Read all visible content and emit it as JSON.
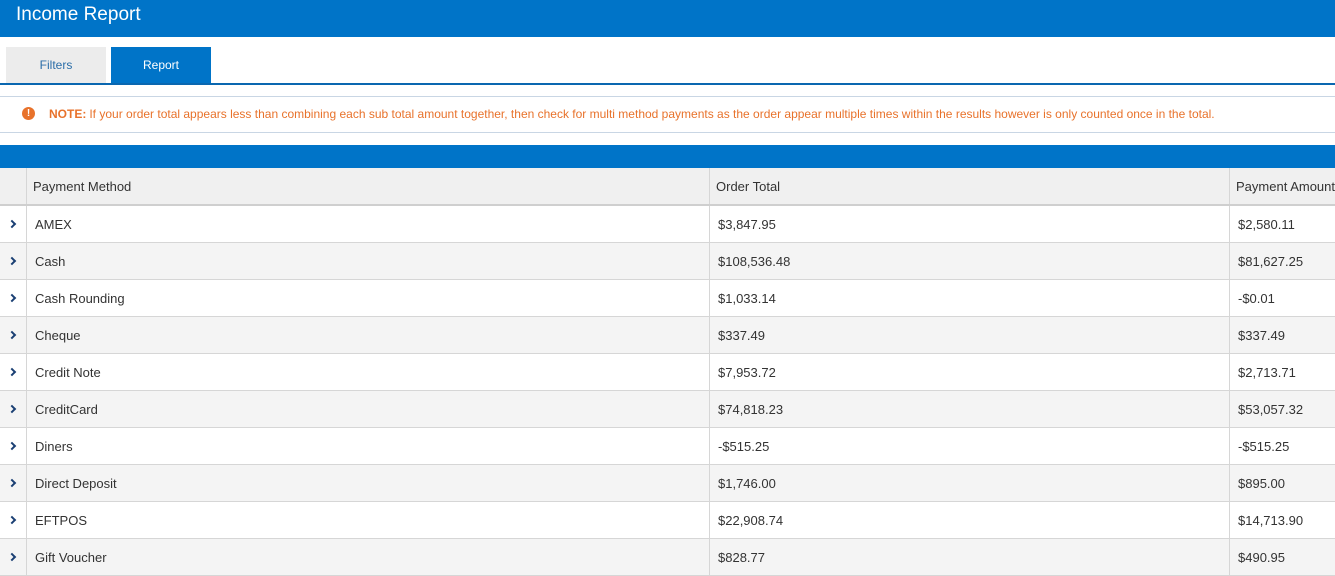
{
  "window": {
    "title": "Income Report"
  },
  "tabs": [
    {
      "label": "Filters",
      "active": false
    },
    {
      "label": "Report",
      "active": true
    }
  ],
  "notice": {
    "icon": "exclamation-circle-icon",
    "label": "NOTE:",
    "text": "If your order total appears less than combining each sub total amount together, then check for multi method payments as the order appear multiple times within the results however is only counted once in the total."
  },
  "grid": {
    "columns": [
      "Payment Method",
      "Order Total",
      "Payment Amount"
    ],
    "rows": [
      {
        "method": "AMEX",
        "order_total": "$3,847.95",
        "payment_amount": "$2,580.11"
      },
      {
        "method": "Cash",
        "order_total": "$108,536.48",
        "payment_amount": "$81,627.25"
      },
      {
        "method": "Cash Rounding",
        "order_total": "$1,033.14",
        "payment_amount": "-$0.01"
      },
      {
        "method": "Cheque",
        "order_total": "$337.49",
        "payment_amount": "$337.49"
      },
      {
        "method": "Credit Note",
        "order_total": "$7,953.72",
        "payment_amount": "$2,713.71"
      },
      {
        "method": "CreditCard",
        "order_total": "$74,818.23",
        "payment_amount": "$53,057.32"
      },
      {
        "method": "Diners",
        "order_total": "-$515.25",
        "payment_amount": "-$515.25"
      },
      {
        "method": "Direct Deposit",
        "order_total": "$1,746.00",
        "payment_amount": "$895.00"
      },
      {
        "method": "EFTPOS",
        "order_total": "$22,908.74",
        "payment_amount": "$14,713.90"
      },
      {
        "method": "Gift Voucher",
        "order_total": "$828.77",
        "payment_amount": "$490.95"
      }
    ]
  },
  "colors": {
    "accent": "#0074c8",
    "notice": "#e8722b"
  }
}
